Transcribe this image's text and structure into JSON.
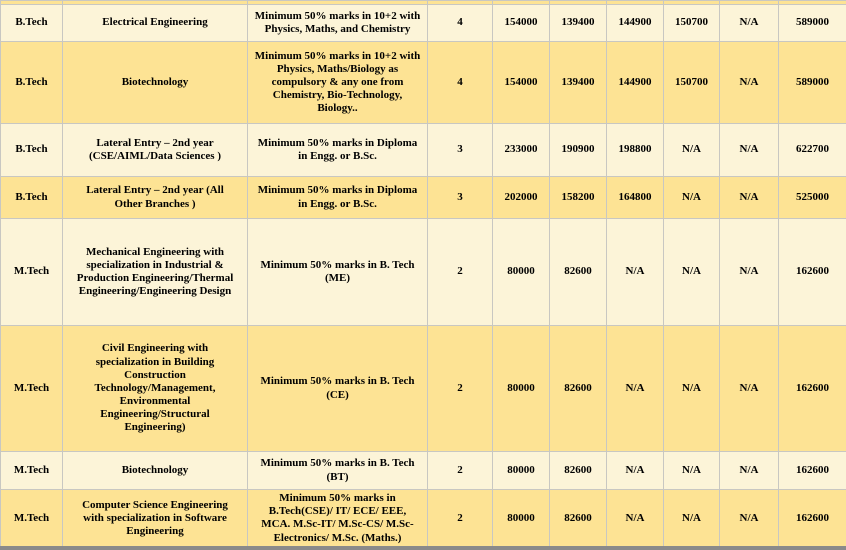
{
  "colors": {
    "row_light": "#FCF4D8",
    "row_dark": "#FDE394",
    "grid_border": "#C8C7C2",
    "text": "#000000",
    "bottom_bar": "#8A8A8A",
    "page_bg": "#FFFFFF"
  },
  "table": {
    "column_semantics": [
      "program",
      "course",
      "eligibility",
      "duration_years",
      "fee_1",
      "fee_2",
      "fee_3",
      "fee_4",
      "fee_5",
      "total_fee"
    ],
    "rows": [
      {
        "cells": [
          "B.Tech",
          "Electrical Engineering",
          "Minimum 50% marks in 10+2 with Physics, Maths, and Chemistry",
          "4",
          "154000",
          "139400",
          "144900",
          "150700",
          "N/A",
          "589000"
        ]
      },
      {
        "cells": [
          "B.Tech",
          "Biotechnology",
          "Minimum 50% marks in 10+2 with Physics, Maths/Biology as compulsory & any one from Chemistry, Bio-Technology, Biology..",
          "4",
          "154000",
          "139400",
          "144900",
          "150700",
          "N/A",
          "589000"
        ]
      },
      {
        "cells": [
          "B.Tech",
          "Lateral Entry – 2nd year (CSE/AIML/Data Sciences )",
          "Minimum 50% marks in Diploma in Engg. or B.Sc.",
          "3",
          "233000",
          "190900",
          "198800",
          "N/A",
          "N/A",
          "622700"
        ]
      },
      {
        "cells": [
          "B.Tech",
          "Lateral Entry – 2nd year (All Other Branches )",
          "Minimum 50% marks in Diploma in Engg. or B.Sc.",
          "3",
          "202000",
          "158200",
          "164800",
          "N/A",
          "N/A",
          "525000"
        ]
      },
      {
        "cells": [
          "M.Tech",
          "Mechanical Engineering with specialization in Industrial & Production Engineering/Thermal Engineering/Engineering Design",
          "Minimum 50% marks in B. Tech (ME)",
          "2",
          "80000",
          "82600",
          "N/A",
          "N/A",
          "N/A",
          "162600"
        ]
      },
      {
        "cells": [
          "M.Tech",
          "Civil Engineering with specialization in Building Construction Technology/Management, Environmental Engineering/Structural Engineering)",
          "Minimum 50% marks in B. Tech (CE)",
          "2",
          "80000",
          "82600",
          "N/A",
          "N/A",
          "N/A",
          "162600"
        ]
      },
      {
        "cells": [
          "M.Tech",
          "Biotechnology",
          "Minimum 50% marks in B. Tech (BT)",
          "2",
          "80000",
          "82600",
          "N/A",
          "N/A",
          "N/A",
          "162600"
        ]
      },
      {
        "cells": [
          "M.Tech",
          "Computer Science Engineering with specialization in Software Engineering",
          "Minimum 50% marks in B.Tech(CSE)/ IT/ ECE/ EEE, MCA. M.Sc-IT/ M.Sc-CS/ M.Sc-Electronics/ M.Sc. (Maths.)",
          "2",
          "80000",
          "82600",
          "N/A",
          "N/A",
          "N/A",
          "162600"
        ]
      }
    ]
  }
}
